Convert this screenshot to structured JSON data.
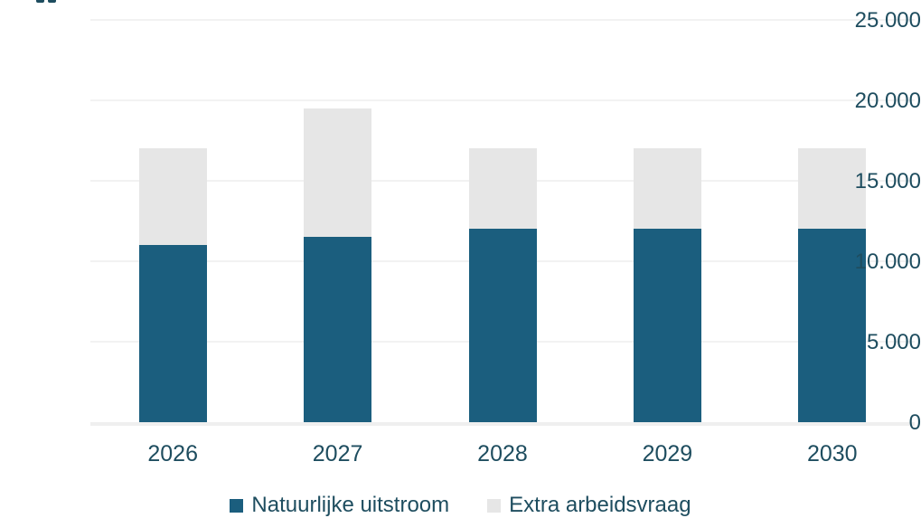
{
  "chart_data": {
    "type": "bar",
    "stacked": true,
    "title": "",
    "xlabel": "",
    "ylabel": "",
    "categories": [
      "2026",
      "2027",
      "2028",
      "2029",
      "2030"
    ],
    "series": [
      {
        "name": "Natuurlijke uitstroom",
        "color": "#1B5E7E",
        "values": [
          11000,
          11500,
          12000,
          12000,
          12000
        ]
      },
      {
        "name": "Extra arbeidsvraag",
        "color": "#E6E6E6",
        "values": [
          6000,
          8000,
          5000,
          5000,
          5000
        ]
      }
    ],
    "stacked_totals": [
      17000,
      19500,
      17000,
      17000,
      17000
    ],
    "ylim": [
      0,
      25000
    ],
    "yticks": [
      {
        "value": 0,
        "label": "0"
      },
      {
        "value": 5000,
        "label": "5.000"
      },
      {
        "value": 10000,
        "label": "10.000"
      },
      {
        "value": 15000,
        "label": "15.000"
      },
      {
        "value": 20000,
        "label": "20.000"
      },
      {
        "value": 25000,
        "label": "25.000"
      }
    ],
    "grid": true,
    "legend_position": "bottom",
    "number_format": "dotted-thousands (nl-NL)"
  },
  "colors": {
    "bar_primary": "#1B5E7E",
    "bar_secondary": "#E6E6E6",
    "axis_text": "#1E4D5F",
    "gridline": "#F2F2F2",
    "baseline": "#EFEFEF",
    "background": "#FFFFFF"
  }
}
